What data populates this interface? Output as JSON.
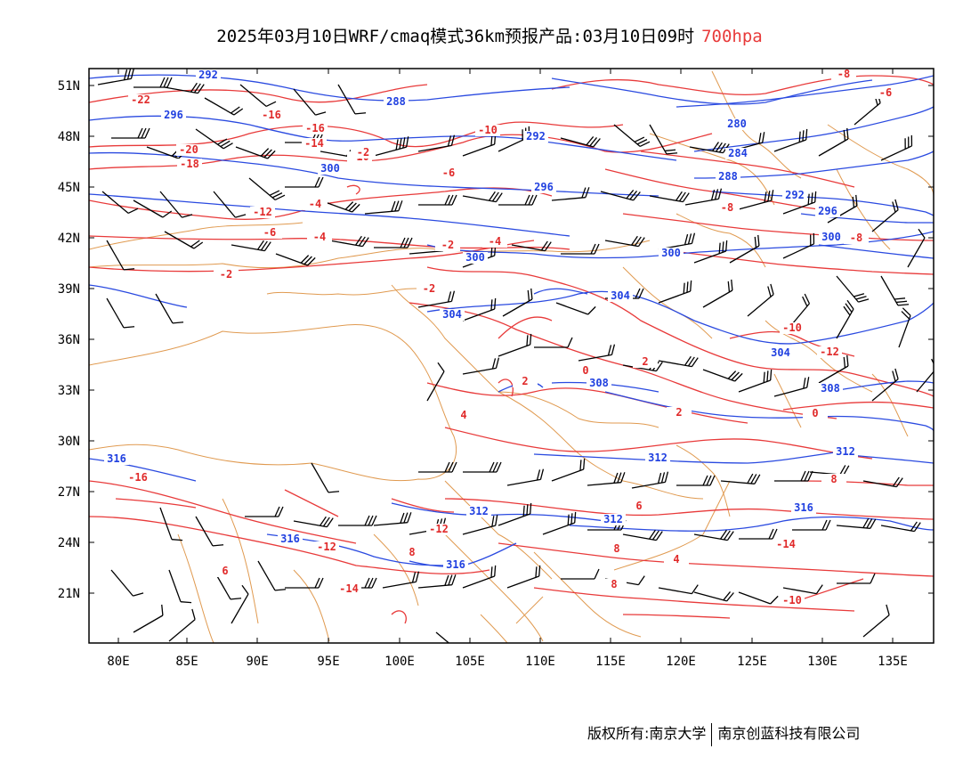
{
  "header": {
    "title": "2025年03月10日WRF/cmaq模式36km预报产品:03月10日09时",
    "level": "700hpa"
  },
  "axes": {
    "lat_labels": [
      "51N",
      "48N",
      "45N",
      "42N",
      "39N",
      "36N",
      "33N",
      "30N",
      "27N",
      "24N",
      "21N"
    ],
    "lon_labels": [
      "80E",
      "85E",
      "90E",
      "95E",
      "100E",
      "105E",
      "110E",
      "115E",
      "120E",
      "125E",
      "130E",
      "135E"
    ]
  },
  "colors": {
    "temperature": "#e83a3a",
    "height": "#2a4ae0",
    "border": "#e09a50",
    "wind": "#000000"
  },
  "map": {
    "lon_range": [
      78,
      138
    ],
    "lat_range": [
      18,
      52
    ],
    "temperature_labels": [
      "-22",
      "-20",
      "-18",
      "-16",
      "-16",
      "-14",
      "-12",
      "-10",
      "-10",
      "-8",
      "-8",
      "-6",
      "-6",
      "-4",
      "-4",
      "-2",
      "-2",
      "-2",
      "0",
      "0",
      "2",
      "2",
      "2",
      "4",
      "4",
      "6",
      "6",
      "8",
      "8",
      "8",
      "8",
      "-14",
      "-12",
      "-16",
      "-12",
      "-14",
      "-10",
      "-8",
      "-6",
      "-4",
      "-2",
      "-10",
      "-12"
    ],
    "height_labels": [
      "292",
      "296",
      "300",
      "288",
      "292",
      "296",
      "280",
      "284",
      "288",
      "292",
      "296",
      "300",
      "300",
      "300",
      "304",
      "304",
      "304",
      "308",
      "312",
      "312",
      "312",
      "316",
      "316",
      "316",
      "316",
      "312",
      "308"
    ]
  },
  "footer": {
    "copyright": "版权所有:南京大学",
    "company": "南京创蓝科技有限公司"
  }
}
